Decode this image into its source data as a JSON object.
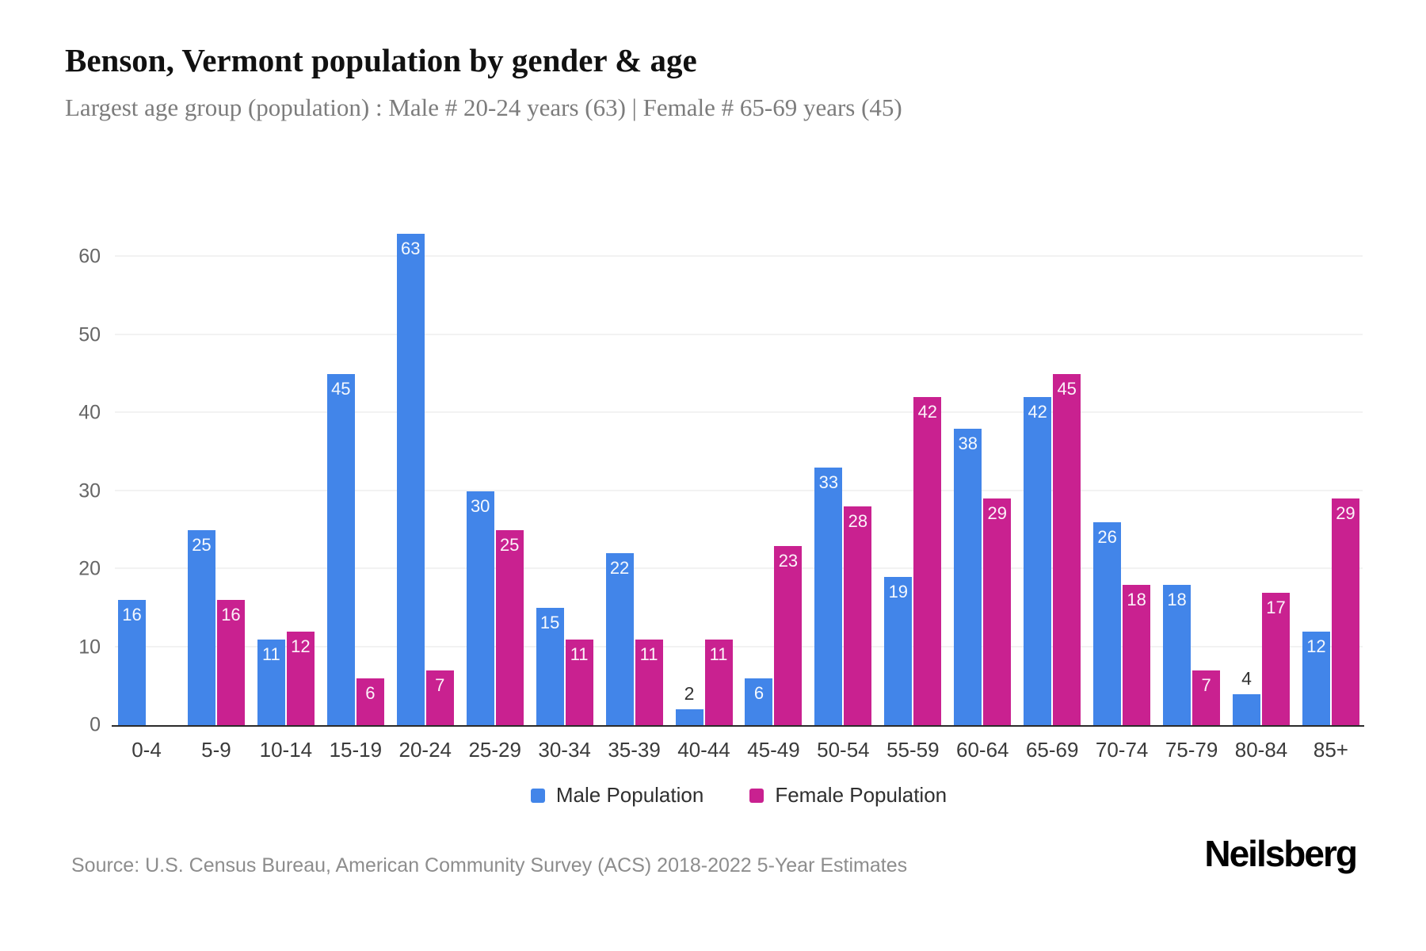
{
  "header": {
    "title": "Benson, Vermont population by gender & age",
    "subtitle": "Largest age group (population) : Male # 20-24 years (63) | Female # 65-69 years (45)"
  },
  "chart_data": {
    "type": "bar",
    "title": "Benson, Vermont population by gender & age",
    "xlabel": "",
    "ylabel": "",
    "categories": [
      "0-4",
      "5-9",
      "10-14",
      "15-19",
      "20-24",
      "25-29",
      "30-34",
      "35-39",
      "40-44",
      "45-49",
      "50-54",
      "55-59",
      "60-64",
      "65-69",
      "70-74",
      "75-79",
      "80-84",
      "85+"
    ],
    "series": [
      {
        "name": "Male Population",
        "color": "#4285e9",
        "values": [
          16,
          25,
          11,
          45,
          63,
          30,
          15,
          22,
          2,
          6,
          33,
          19,
          38,
          42,
          26,
          18,
          4,
          12
        ]
      },
      {
        "name": "Female Population",
        "color": "#c92190",
        "values": [
          0,
          16,
          12,
          6,
          7,
          25,
          11,
          11,
          11,
          23,
          28,
          42,
          29,
          45,
          18,
          7,
          17,
          29
        ]
      }
    ],
    "ylim": [
      0,
      65
    ],
    "yticks": [
      0,
      10,
      20,
      30,
      40,
      50,
      60
    ],
    "grid": "horizontal-light",
    "legend_position": "bottom",
    "bar_label_color_inside": "#ffffff",
    "bar_label_color_outside": "#333333",
    "inside_label_min_value": 6
  },
  "footer": {
    "source": "Source: U.S. Census Bureau, American Community Survey (ACS) 2018-2022 5-Year Estimates",
    "brand": "Neilsberg"
  }
}
